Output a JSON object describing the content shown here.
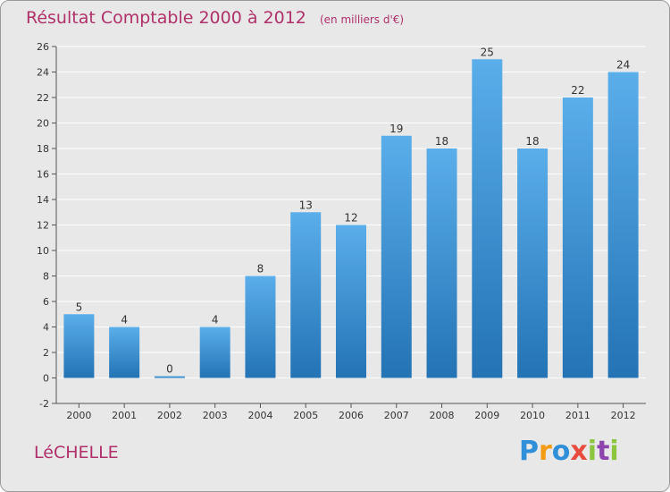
{
  "title": "Résultat Comptable 2000 à 2012",
  "unit": "(en milliers d'€)",
  "commune": "LéCHELLE",
  "logo": {
    "text": "Proxiti",
    "letters": [
      "P",
      "r",
      "o",
      "x",
      "i",
      "t",
      "i"
    ],
    "colors": [
      "#2f8fd8",
      "#f39c12",
      "#2f8fd8",
      "#e74c3c",
      "#8cc63f",
      "#8e44ad",
      "#8cc63f"
    ]
  },
  "colors": {
    "bar_light": "#5aaeea",
    "bar_dark": "#2373b5",
    "title": "#b0306a",
    "background": "#e8e8e8"
  },
  "chart_data": {
    "type": "bar",
    "title": "Résultat Comptable 2000 à 2012",
    "xlabel": "",
    "ylabel": "",
    "categories": [
      "2000",
      "2001",
      "2002",
      "2003",
      "2004",
      "2005",
      "2006",
      "2007",
      "2008",
      "2009",
      "2010",
      "2011",
      "2012"
    ],
    "values": [
      5,
      4,
      0,
      4,
      8,
      13,
      12,
      19,
      18,
      25,
      18,
      22,
      24
    ],
    "ylim": [
      -2,
      26
    ],
    "yticks": [
      -2,
      0,
      2,
      4,
      6,
      8,
      10,
      12,
      14,
      16,
      18,
      20,
      22,
      24,
      26
    ],
    "grid": true
  }
}
